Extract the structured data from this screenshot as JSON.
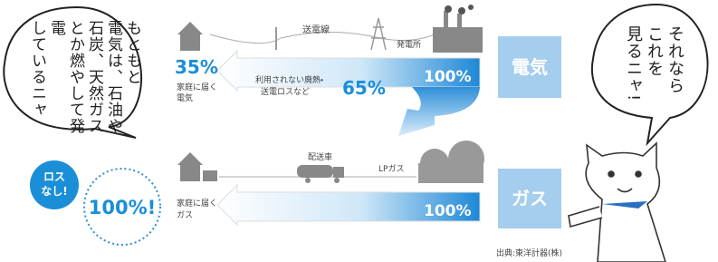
{
  "left_bubble": {
    "lines": [
      "もともと",
      "電気は、石油や",
      "石炭、天然ガス",
      "とか燃やして発電",
      "しているニャ"
    ]
  },
  "right_bubble": {
    "lines": [
      "それなら",
      "これを",
      "見るニャ!"
    ]
  },
  "electricity": {
    "label": "電気",
    "power_line": "送電線",
    "plant": "発電所",
    "home_percent": "35%",
    "home_label": [
      "家庭に届く",
      "電気"
    ],
    "loss_label": [
      "利用されない廃熱・",
      "送電ロスなど"
    ],
    "loss_percent": "65%",
    "source_percent": "100%"
  },
  "gas": {
    "label": "ガス",
    "truck": "配送車",
    "lp": "LPガス",
    "no_loss": [
      "ロス",
      "なし!"
    ],
    "home_percent": "100%!",
    "home_label": [
      "家庭に届く",
      "ガス"
    ],
    "source_percent": "100%"
  },
  "source": "出典:東洋計器(株)"
}
